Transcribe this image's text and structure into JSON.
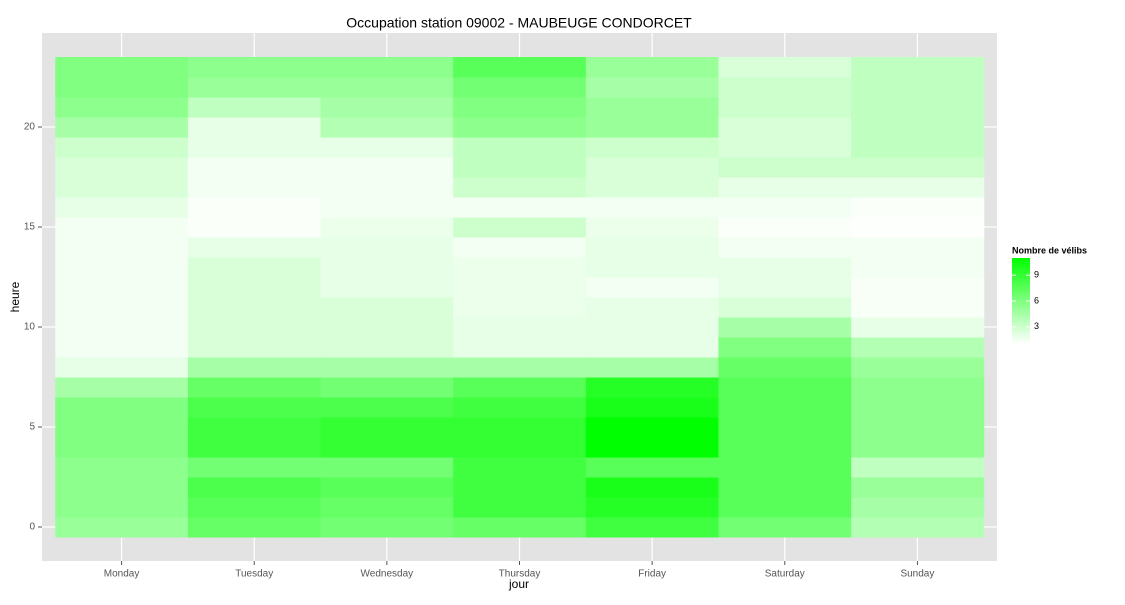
{
  "chart_data": {
    "type": "heatmap",
    "title": "Occupation station 09002 - MAUBEUGE CONDORCET",
    "xlabel": "jour",
    "ylabel": "heure",
    "categories": [
      "Monday",
      "Tuesday",
      "Wednesday",
      "Thursday",
      "Friday",
      "Saturday",
      "Sunday"
    ],
    "y": [
      0,
      1,
      2,
      3,
      4,
      5,
      6,
      7,
      8,
      9,
      10,
      11,
      12,
      13,
      14,
      15,
      16,
      17,
      18,
      19,
      20,
      21,
      22,
      23
    ],
    "values": [
      [
        5,
        5.5,
        5.5,
        5.5,
        6,
        6,
        6,
        4.5,
        2,
        1.5,
        1.5,
        1.5,
        1.5,
        1.5,
        1.5,
        1.5,
        2,
        2.5,
        2.5,
        3,
        4.5,
        5.5,
        6,
        6
      ],
      [
        7,
        7.5,
        8,
        6.5,
        8.5,
        8.5,
        8,
        7,
        4.5,
        2.5,
        2.5,
        2.5,
        2.5,
        2.5,
        2,
        1.2,
        1.2,
        1.5,
        1.5,
        2,
        2,
        3.5,
        5,
        5.5
      ],
      [
        6.5,
        7,
        7.5,
        6.5,
        9,
        9,
        8,
        6.5,
        4.5,
        2.5,
        2.5,
        2.5,
        2,
        2,
        2,
        1.8,
        1.5,
        1.5,
        1.5,
        2,
        4,
        4.5,
        5,
        5.5
      ],
      [
        7,
        8.5,
        8.5,
        8.5,
        9,
        9,
        8.5,
        7.5,
        4.5,
        2,
        2,
        1.8,
        1.8,
        1.8,
        1.5,
        3,
        1.5,
        3,
        3.5,
        3.5,
        5.5,
        6,
        6.5,
        7.5
      ],
      [
        8.5,
        9.5,
        10,
        7.5,
        11,
        11,
        10,
        9.5,
        4.5,
        2,
        2,
        2,
        1.5,
        2,
        2,
        1.8,
        1.5,
        2.5,
        2.5,
        3,
        5,
        5,
        4.5,
        5
      ],
      [
        6.5,
        7.5,
        7.5,
        7.5,
        7.5,
        7.5,
        7.5,
        7.5,
        7,
        6,
        4.5,
        2.5,
        2,
        2,
        1.5,
        1.2,
        1.5,
        2,
        3,
        2.5,
        2.5,
        3,
        3,
        2.5
      ],
      [
        4,
        4.5,
        5,
        3.5,
        5.5,
        5.5,
        5.5,
        5.5,
        5,
        4,
        2,
        1.3,
        1.3,
        1.5,
        1.5,
        1.1,
        1.2,
        2,
        3,
        3.5,
        3.5,
        3.5,
        3.5,
        3.5
      ]
    ],
    "ylim": [
      -1.7,
      24.7
    ],
    "yticks": [
      0,
      5,
      10,
      15,
      20
    ],
    "grid": true,
    "legend_title": "Nombre de vélibs",
    "colorbar_ticks": [
      3,
      6,
      9
    ],
    "color_limits": [
      1,
      11
    ],
    "low_color": "#ffffff",
    "high_color": "#00ff00"
  }
}
